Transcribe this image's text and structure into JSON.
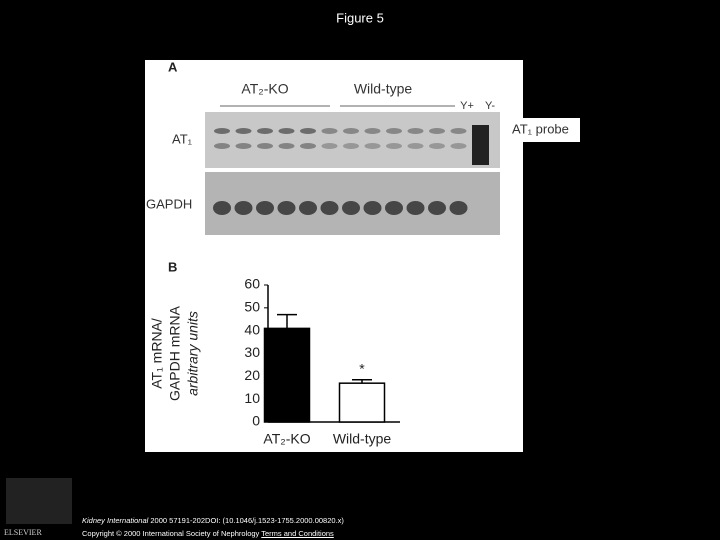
{
  "header": {
    "title": "Figure 5"
  },
  "panel_a": {
    "label": "A",
    "group_labels": [
      "AT₂-KO",
      "Wild-type"
    ],
    "control_labels": [
      "Y+",
      "Y-"
    ],
    "row_labels": [
      "AT₁",
      "GAPDH"
    ],
    "probe_label": "AT₁ probe"
  },
  "chart_data": {
    "type": "bar",
    "panel_label": "B",
    "ylabel": [
      "AT₁ mRNA/",
      "GAPDH mRNA",
      "arbitrary units"
    ],
    "categories": [
      "AT₂-KO",
      "Wild-type"
    ],
    "values": [
      41,
      17
    ],
    "errors": [
      6,
      1.5
    ],
    "colors": [
      "#000000",
      "#ffffff"
    ],
    "annotation": "*",
    "ylim": [
      0,
      60
    ],
    "yticks": [
      0,
      10,
      20,
      30,
      40,
      50,
      60
    ]
  },
  "footer": {
    "journal": "Kidney International",
    "citation": "2000 57191-202DOI: (10.1046/j.1523-1755.2000.00820.x)",
    "copyright": "Copyright © 2000 International Society of Nephrology",
    "link": "Terms and Conditions",
    "logo": "ELSEVIER"
  }
}
